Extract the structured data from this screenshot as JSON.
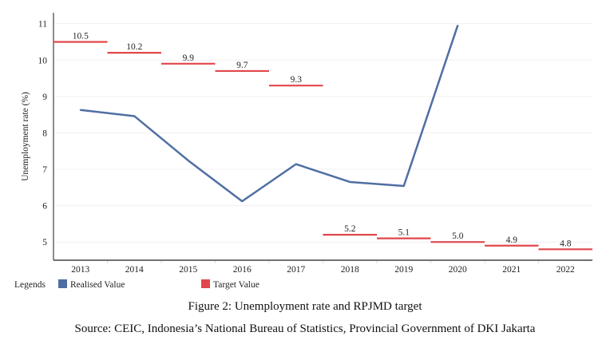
{
  "chart_data": {
    "type": "line",
    "title": "",
    "xlabel": "",
    "ylabel": "Unemployment rate (%)",
    "ylim": [
      4.5,
      11.3
    ],
    "yticks": [
      5,
      6,
      7,
      8,
      9,
      10,
      11
    ],
    "categories": [
      "2013",
      "2014",
      "2015",
      "2016",
      "2017",
      "2018",
      "2019",
      "2020",
      "2021",
      "2022"
    ],
    "grid": true,
    "series": [
      {
        "name": "Realised Value",
        "color": "#4f6fa3",
        "style": "line",
        "values": [
          8.63,
          8.46,
          7.24,
          6.12,
          7.14,
          6.65,
          6.54,
          10.95,
          null,
          null
        ]
      },
      {
        "name": "Target Value",
        "color": "#e0474c",
        "style": "step-segments",
        "values": [
          10.5,
          10.2,
          9.9,
          9.7,
          9.3,
          5.2,
          5.1,
          5.0,
          4.9,
          4.8
        ],
        "labels": [
          "10.5",
          "10.2",
          "9.9",
          "9.7",
          "9.3",
          "5.2",
          "5.1",
          "5.0",
          "4.9",
          "4.8"
        ]
      }
    ],
    "legend": {
      "title": "Legends",
      "placement": "bottom-left"
    }
  },
  "caption": "Figure 2: Unemployment rate and RPJMD target",
  "source": "Source: CEIC, Indonesia’s National Bureau of Statistics, Provincial Government of DKI Jakarta"
}
